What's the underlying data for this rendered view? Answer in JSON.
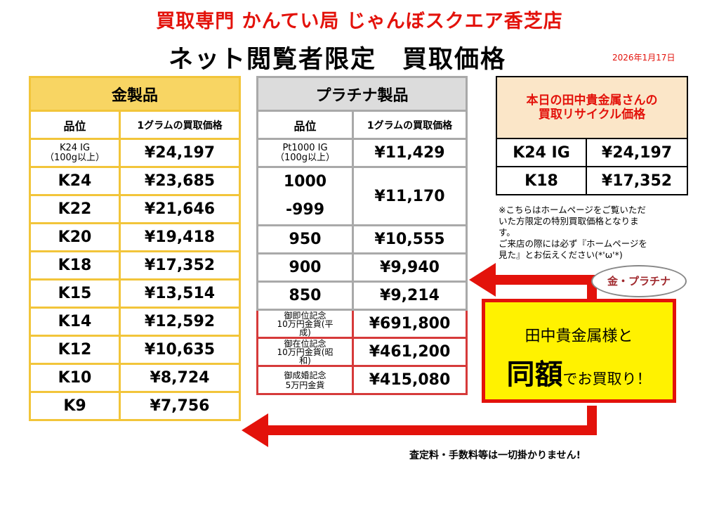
{
  "header": {
    "store": "買取専門 かんてい局 じゃんぼスクエア香芝店",
    "title": "ネット閲覧者限定　買取価格",
    "date": "2026年1月17日"
  },
  "gold": {
    "caption": "金製品",
    "col_grade": "品位",
    "col_price": "1グラムの買取価格",
    "rows": [
      {
        "grade_line1": "K24 IG",
        "grade_line2": "（100g以上）",
        "price": "¥24,197"
      },
      {
        "grade": "K24",
        "price": "¥23,685"
      },
      {
        "grade": "K22",
        "price": "¥21,646"
      },
      {
        "grade": "K20",
        "price": "¥19,418"
      },
      {
        "grade": "K18",
        "price": "¥17,352"
      },
      {
        "grade": "K15",
        "price": "¥13,514"
      },
      {
        "grade": "K14",
        "price": "¥12,592"
      },
      {
        "grade": "K12",
        "price": "¥10,635"
      },
      {
        "grade": "K10",
        "price": "¥8,724"
      },
      {
        "grade": "K9",
        "price": "¥7,756"
      }
    ]
  },
  "platinum": {
    "caption": "プラチナ製品",
    "col_grade": "品位",
    "col_price": "1グラムの買取価格",
    "rows": [
      {
        "grade_line1": "Pt1000 IG",
        "grade_line2": "（100g以上）",
        "price": "¥11,429"
      },
      {
        "grade_line1": "1000",
        "grade_line2": "-999",
        "price": "¥11,170"
      },
      {
        "grade": "950",
        "price": "¥10,555"
      },
      {
        "grade": "900",
        "price": "¥9,940"
      },
      {
        "grade": "850",
        "price": "¥9,214"
      }
    ],
    "coins": [
      {
        "name_line1": "御即位記念",
        "name_line2": "10万円金貨(平",
        "name_line3": "成)",
        "price": "¥691,800"
      },
      {
        "name_line1": "御在位記念",
        "name_line2": "10万円金貨(昭",
        "name_line3": "和)",
        "price": "¥461,200"
      },
      {
        "name_line1": "御成婚記念",
        "name_line2": "5万円金貨",
        "price": "¥415,080"
      }
    ]
  },
  "tanaka": {
    "title_line1": "本日の田中貴金属さんの",
    "title_line2": "買取リサイクル価格",
    "rows": [
      {
        "grade": "K24 IG",
        "price": "¥24,197"
      },
      {
        "grade": "K18",
        "price": "¥17,352"
      }
    ]
  },
  "note": {
    "line1": "※こちらはホームページをご覧いただ",
    "line2": "いた方限定の特別買取価格となりま",
    "line3": "す。",
    "line4": "ご来店の際には必ず『ホームページを",
    "line5": "見た』とお伝えください(*'ω'*)"
  },
  "promo": {
    "bubble": "金・プラチナ",
    "line1": "田中貴金属様と",
    "big": "同額",
    "rest": "でお買取り！"
  },
  "footer": "査定料・手数料等は一切掛かりません!",
  "colors": {
    "red": "#e3120b",
    "gold_header": "#f8d563",
    "gold_border": "#f2c53a",
    "platinum_header": "#dcdcdc",
    "platinum_border": "#a9a9a9",
    "tanaka_header": "#fbe6c8",
    "promo_bg": "#fff200"
  }
}
